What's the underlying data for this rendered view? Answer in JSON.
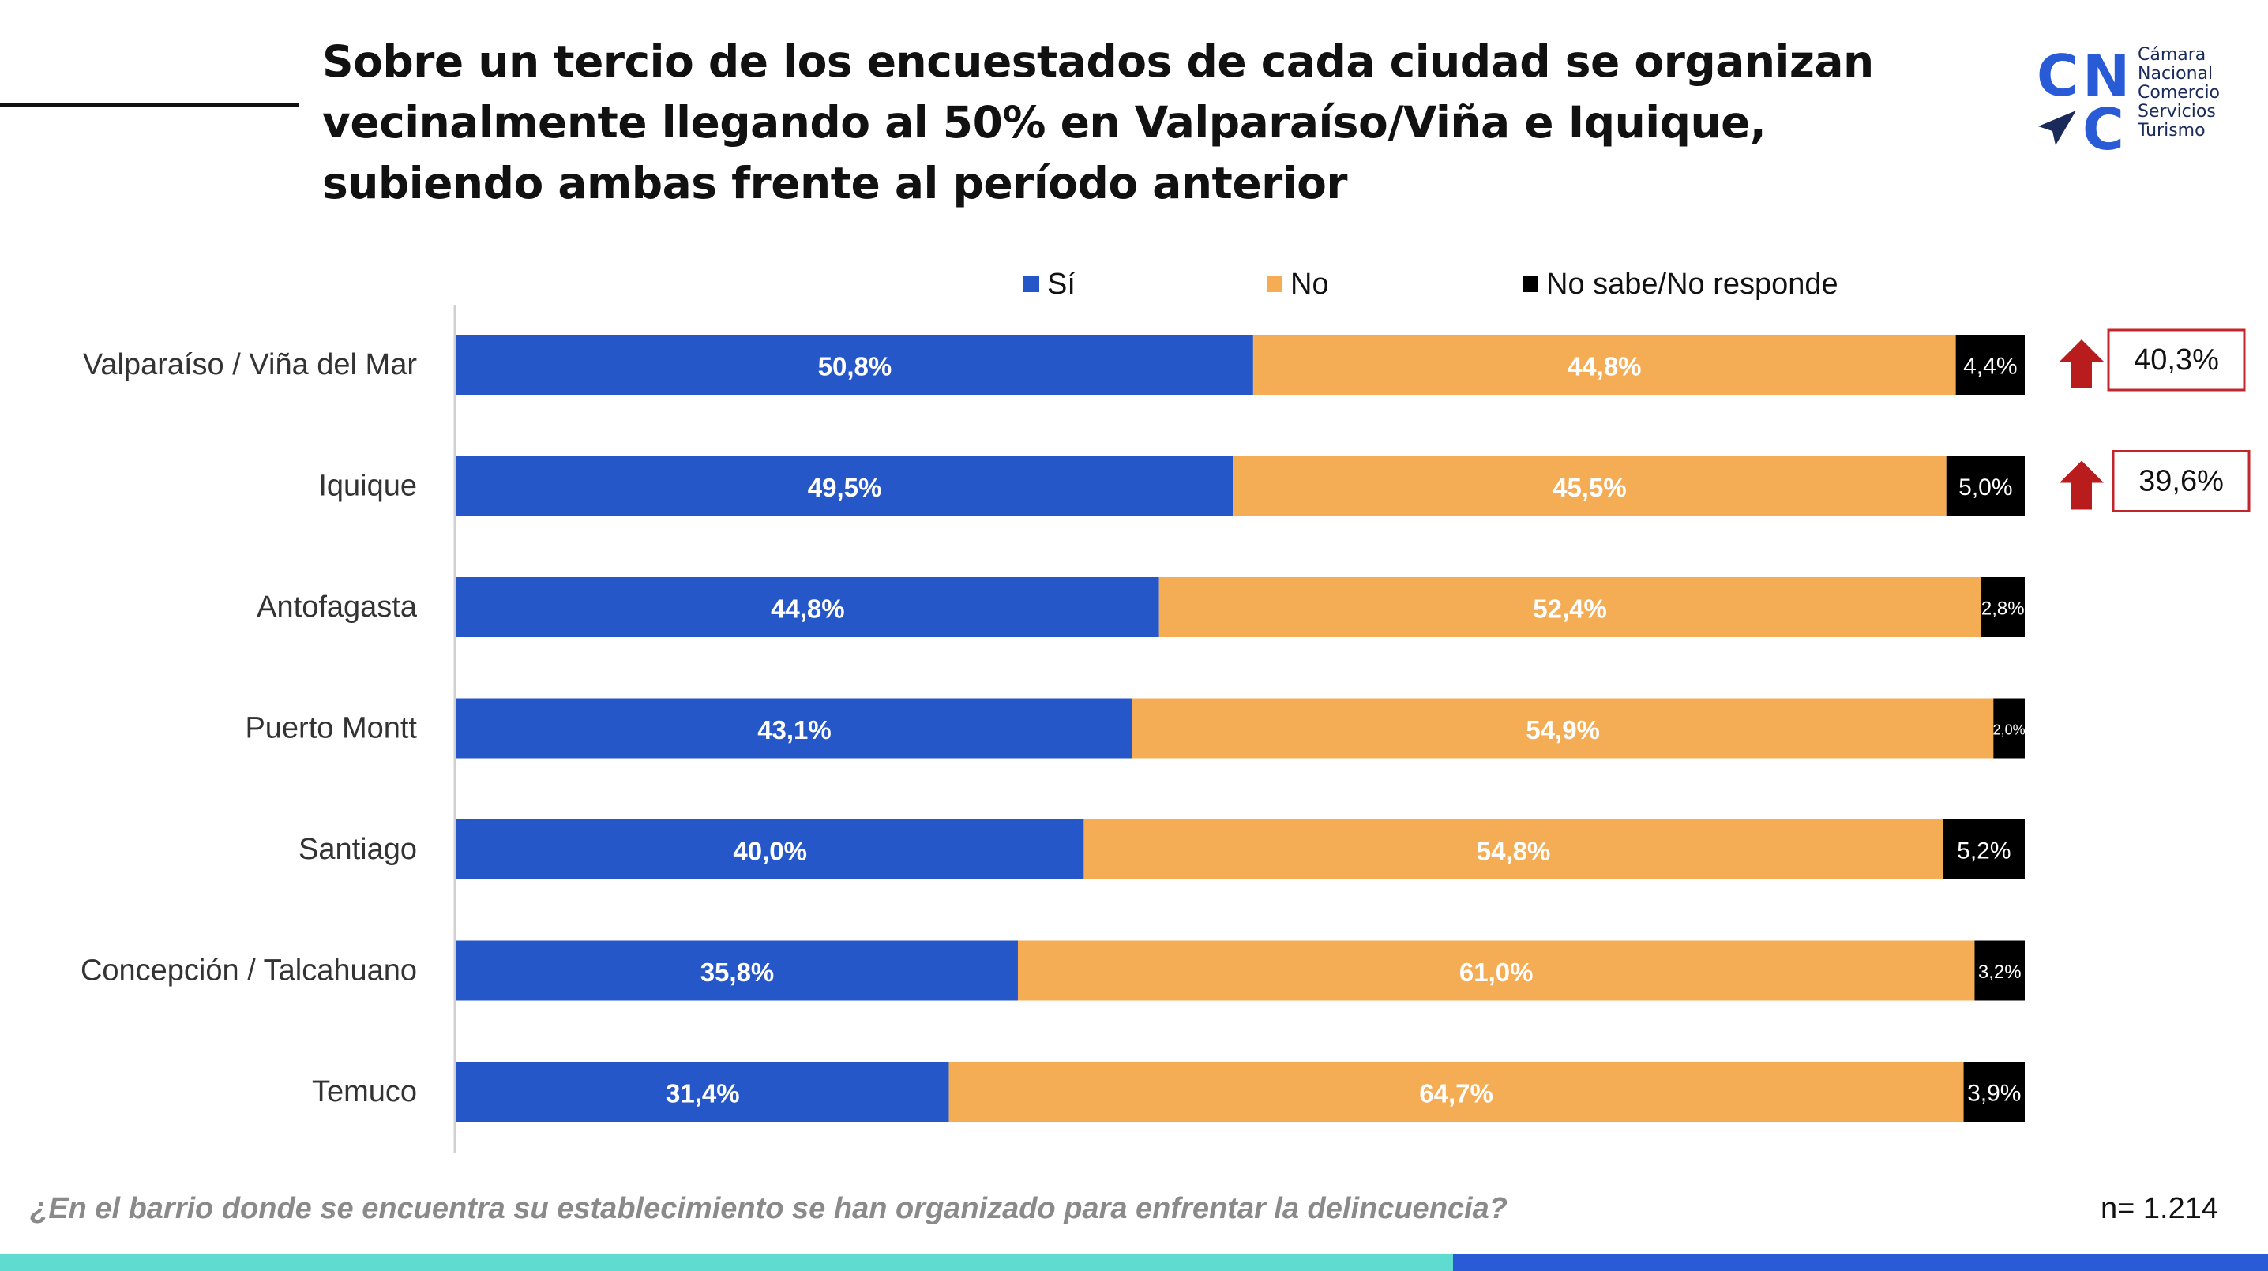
{
  "title": "Sobre un tercio de los encuestados de cada ciudad se organizan vecinalmente llegando al 50% en Valparaíso/Viña e Iquique, subiendo ambas frente al período anterior",
  "logo": {
    "letters": [
      "C",
      "N",
      "C"
    ],
    "lines": [
      "Cámara",
      "Nacional",
      "Comercio",
      "Servicios",
      "Turismo"
    ]
  },
  "colors": {
    "si": "#2557c9",
    "no": "#f4ac55",
    "ns": "#000000",
    "arrow": "#b81c1c",
    "box_border": "#c0262c"
  },
  "question": "¿En el barrio donde se encuentra su establecimiento se han organizado para enfrentar la delincuencia?",
  "sample": "n= 1.214",
  "chart_data": {
    "type": "bar",
    "orientation": "horizontal",
    "stacked": true,
    "legend": [
      "Sí",
      "No",
      "No sabe/No responde"
    ],
    "legend_position": "top",
    "categories": [
      "Valparaíso / Viña del Mar",
      "Iquique",
      "Antofagasta",
      "Puerto Montt",
      "Santiago",
      "Concepción / Talcahuano",
      "Temuco"
    ],
    "series": [
      {
        "name": "Sí",
        "values": [
          50.8,
          49.5,
          44.8,
          43.1,
          40.0,
          35.8,
          31.4
        ],
        "labels": [
          "50,8%",
          "49,5%",
          "44,8%",
          "43,1%",
          "40,0%",
          "35,8%",
          "31,4%"
        ]
      },
      {
        "name": "No",
        "values": [
          44.8,
          45.5,
          52.4,
          54.9,
          54.8,
          61.0,
          64.7
        ],
        "labels": [
          "44,8%",
          "45,5%",
          "52,4%",
          "54,9%",
          "54,8%",
          "61,0%",
          "64,7%"
        ]
      },
      {
        "name": "No sabe/No responde",
        "values": [
          4.4,
          5.0,
          2.8,
          2.0,
          5.2,
          3.2,
          3.9
        ],
        "labels": [
          "4,4%",
          "5,0%",
          "2,8%",
          "2,0%",
          "5,2%",
          "3,2%",
          "3,9%"
        ]
      }
    ],
    "previous_period": [
      {
        "category": "Valparaíso / Viña del Mar",
        "label": "40,3%",
        "direction": "up"
      },
      {
        "category": "Iquique",
        "label": "39,6%",
        "direction": "up"
      }
    ],
    "xlim": [
      0,
      100
    ]
  }
}
